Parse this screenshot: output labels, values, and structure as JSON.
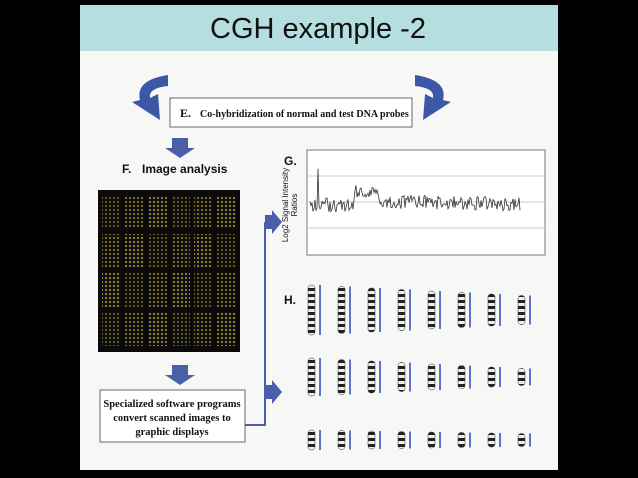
{
  "header": {
    "title": "CGH example -2"
  },
  "steps": {
    "e": {
      "label": "E.",
      "text": "Co-hybridization of normal and test DNA probes"
    },
    "f": {
      "label": "F.",
      "text": "Image analysis"
    },
    "g": {
      "label": "G.",
      "y_axis_label": [
        "Log2 Signal Intensity",
        "Ratios"
      ]
    },
    "h": {
      "label": "H."
    }
  },
  "note": {
    "text": [
      "Specialized software programs",
      "convert scanned images to",
      "graphic displays"
    ]
  }
}
